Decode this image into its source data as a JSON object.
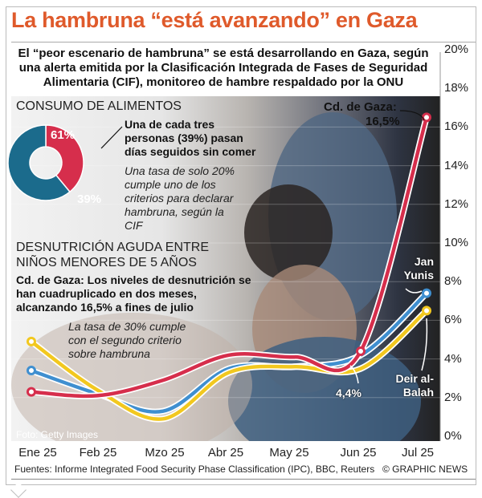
{
  "title": "La hambruna “está avanzando” en Gaza",
  "intro": "El “peor escenario de hambruna” se está desarrollando en Gaza, según una alerta emitida por la Clasificación Integrada de Fases de Seguridad Alimentaria (CIF), monitoreo de hambre respaldado por la ONU",
  "food": {
    "heading": "CONSUMO DE ALIMENTOS",
    "donut": [
      {
        "label": "61%",
        "value": 61,
        "color": "#1b6b8c"
      },
      {
        "label": "39%",
        "value": 39,
        "color": "#d62e4c"
      }
    ],
    "callout": "Una de cada tres personas (39%) pasan días seguidos sin comer",
    "note": "Una tasa de solo 20% cumple uno de los criterios para declarar hambruna, según la CIF"
  },
  "malnutrition": {
    "heading": "DESNUTRICIÓN AGUDA ENTRE NIÑOS MENORES DE 5 AÑOS",
    "text": "Cd. de Gaza: Los niveles de desnutrición se han cuadruplicado en dos meses, alcanzando 16,5% a fines de julio",
    "note": "La tasa de 30% cumple con el segundo criterio sobre hambruna"
  },
  "chart_data": {
    "type": "line",
    "categories": [
      "Ene 25",
      "Feb 25",
      "Mzo 25",
      "Abr 25",
      "May 25",
      "Jun 25",
      "Jul 25"
    ],
    "ylim": [
      0,
      20
    ],
    "yticks": [
      "0%",
      "2%",
      "4%",
      "6%",
      "8%",
      "10%",
      "12%",
      "14%",
      "16%",
      "18%",
      "20%"
    ],
    "grid": true,
    "series": [
      {
        "name": "Jan Yunis",
        "color": "#3f8fd0",
        "values": [
          3.4,
          2.2,
          1.3,
          3.5,
          3.6,
          4.2,
          7.4
        ]
      },
      {
        "name": "Deir al-Balah",
        "color": "#f2c81f",
        "values": [
          4.9,
          2.4,
          0.9,
          3.3,
          3.6,
          3.5,
          6.5
        ]
      },
      {
        "name": "Cd. de Gaza",
        "color": "#d62e4c",
        "values": [
          2.3,
          2.1,
          2.9,
          4.2,
          4.1,
          4.4,
          16.5
        ]
      }
    ],
    "annotations": {
      "gaza_label": "Cd. de Gaza:",
      "gaza_value": "16,5%",
      "jun_value": "4,4%",
      "jan_yunis": "Jan Yunis",
      "deir": "Deir al-Balah"
    }
  },
  "photo_credit": "Foto: Getty Images",
  "sources": "Fuentes: Informe Integrated Food Security Phase Classification (IPC), BBC, Reuters",
  "copyright": "© GRAPHIC NEWS"
}
